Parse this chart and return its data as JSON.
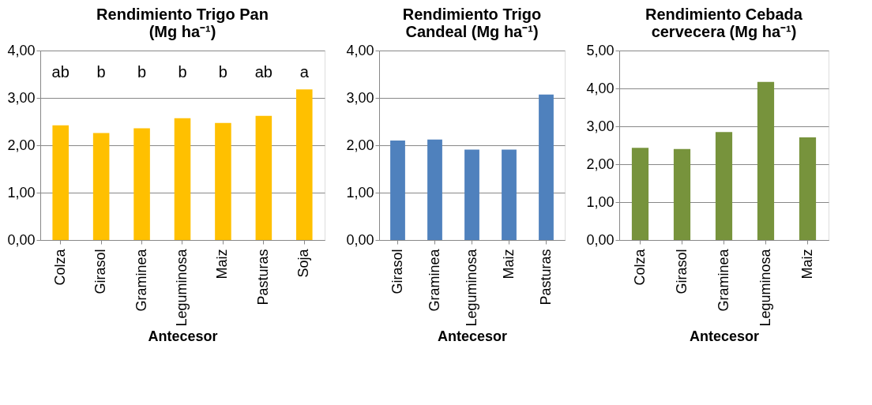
{
  "chart_data": [
    {
      "type": "bar",
      "title": "Rendimiento Trigo Pan (Mg ha⁻¹)",
      "xlabel": "Antecesor",
      "categories": [
        "Colza",
        "Girasol",
        "Graminea",
        "Leguminosa",
        "Maiz",
        "Pasturas",
        "Soja"
      ],
      "values": [
        2.42,
        2.26,
        2.36,
        2.57,
        2.47,
        2.62,
        3.18
      ],
      "color": "#ffc000",
      "ylim": [
        0,
        4
      ],
      "yticks": [
        {
          "value": 0,
          "label": "0,00"
        },
        {
          "value": 1,
          "label": "1,00"
        },
        {
          "value": 2,
          "label": "2,00"
        },
        {
          "value": 3,
          "label": "3,00"
        },
        {
          "value": 4,
          "label": "4,00"
        }
      ],
      "grid": "y",
      "annotations": [
        "ab",
        "b",
        "b",
        "b",
        "b",
        "ab",
        "a"
      ]
    },
    {
      "type": "bar",
      "title": "Rendimiento Trigo Candeal (Mg ha⁻¹)",
      "xlabel": "Antecesor",
      "categories": [
        "Girasol",
        "Graminea",
        "Leguminosa",
        "Maiz",
        "Pasturas"
      ],
      "values": [
        2.1,
        2.12,
        1.91,
        1.91,
        3.07
      ],
      "color": "#4f81bd",
      "ylim": [
        0,
        4
      ],
      "yticks": [
        {
          "value": 0,
          "label": "0,00"
        },
        {
          "value": 1,
          "label": "1,00"
        },
        {
          "value": 2,
          "label": "2,00"
        },
        {
          "value": 3,
          "label": "3,00"
        },
        {
          "value": 4,
          "label": "4,00"
        }
      ],
      "grid": "y"
    },
    {
      "type": "bar",
      "title": "Rendimiento Cebada cervecera (Mg ha⁻¹)",
      "xlabel": "Antecesor",
      "categories": [
        "Colza",
        "Girasol",
        "Graminea",
        "Leguminosa",
        "Maiz"
      ],
      "values": [
        2.43,
        2.4,
        2.85,
        4.17,
        2.71
      ],
      "color": "#77933c",
      "ylim": [
        0,
        5
      ],
      "yticks": [
        {
          "value": 0,
          "label": "0,00"
        },
        {
          "value": 1,
          "label": "1,00"
        },
        {
          "value": 2,
          "label": "2,00"
        },
        {
          "value": 3,
          "label": "3,00"
        },
        {
          "value": 4,
          "label": "4,00"
        },
        {
          "value": 5,
          "label": "5,00"
        }
      ],
      "grid": "y"
    }
  ]
}
